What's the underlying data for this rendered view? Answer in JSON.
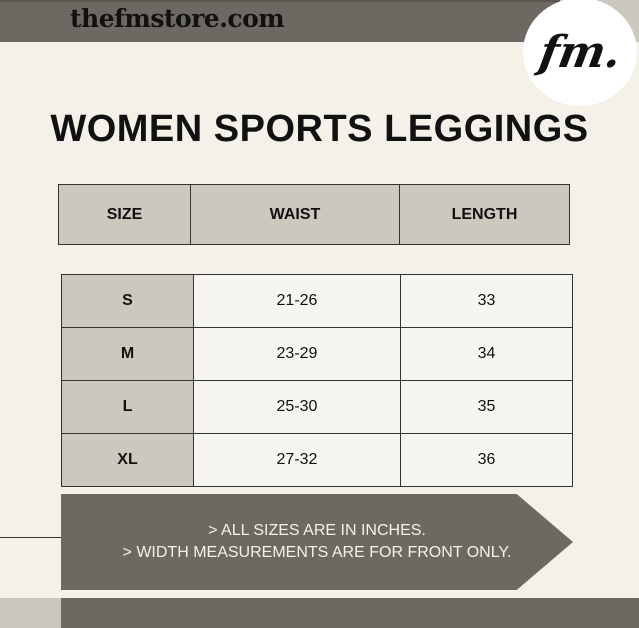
{
  "header": {
    "site": "thefmstore.com",
    "logo_text": "fm."
  },
  "title": "WOMEN SPORTS LEGGINGS",
  "table": {
    "headers": [
      "SIZE",
      "WAIST",
      "LENGTH"
    ],
    "rows": [
      [
        "S",
        "21-26",
        "33"
      ],
      [
        "M",
        "23-29",
        "34"
      ],
      [
        "L",
        "25-30",
        "35"
      ],
      [
        "XL",
        "27-32",
        "36"
      ]
    ]
  },
  "notes": [
    "> ALL SIZES ARE IN INCHES.",
    "> WIDTH MEASUREMENTS ARE FOR FRONT ONLY."
  ],
  "colors": {
    "dark": "#6d6862",
    "light": "#cdc8bd",
    "background": "#f4f1e8"
  }
}
